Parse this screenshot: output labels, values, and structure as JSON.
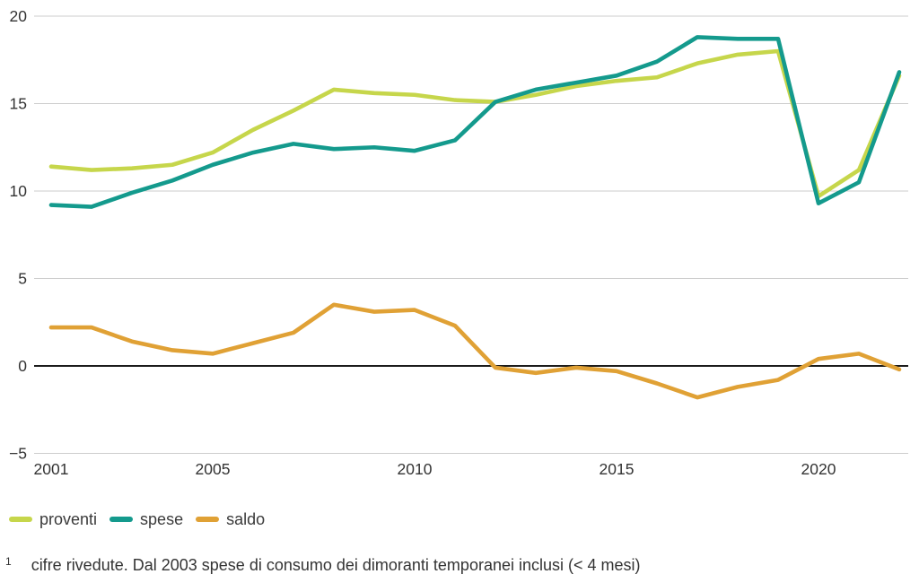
{
  "chart_data": {
    "type": "line",
    "x": [
      2001,
      2002,
      2003,
      2004,
      2005,
      2006,
      2007,
      2008,
      2009,
      2010,
      2011,
      2012,
      2013,
      2014,
      2015,
      2016,
      2017,
      2018,
      2019,
      2020,
      2021,
      2022
    ],
    "series": [
      {
        "name": "proventi",
        "color": "#c6d64b",
        "values": [
          11.4,
          11.2,
          11.3,
          11.5,
          12.2,
          13.5,
          14.6,
          15.8,
          15.6,
          15.5,
          15.2,
          15.1,
          15.5,
          16.0,
          16.3,
          16.5,
          17.3,
          17.8,
          18.0,
          9.7,
          11.2,
          16.6
        ]
      },
      {
        "name": "spese",
        "color": "#149a8d",
        "values": [
          9.2,
          9.1,
          9.9,
          10.6,
          11.5,
          12.2,
          12.7,
          12.4,
          12.5,
          12.3,
          12.9,
          15.1,
          15.8,
          16.2,
          16.6,
          17.4,
          18.8,
          18.7,
          18.7,
          9.3,
          10.5,
          16.8
        ]
      },
      {
        "name": "saldo",
        "color": "#e0a135",
        "values": [
          2.2,
          2.2,
          1.4,
          0.9,
          0.7,
          1.3,
          1.9,
          3.5,
          3.1,
          3.2,
          2.3,
          -0.1,
          -0.4,
          -0.1,
          -0.3,
          -1.0,
          -1.8,
          -1.2,
          -0.8,
          0.4,
          0.7,
          -0.2
        ]
      }
    ],
    "xticks": [
      {
        "value": 2001,
        "label": "2001"
      },
      {
        "value": 2005,
        "label": "2005"
      },
      {
        "value": 2010,
        "label": "2010"
      },
      {
        "value": 2015,
        "label": "2015"
      },
      {
        "value": 2020,
        "label": "2020"
      }
    ],
    "yticks": [
      {
        "value": 20,
        "label": "20"
      },
      {
        "value": 15,
        "label": "15"
      },
      {
        "value": 10,
        "label": "10"
      },
      {
        "value": 5,
        "label": "5"
      },
      {
        "value": 0,
        "label": "0"
      },
      {
        "value": -5,
        "label": "−5"
      }
    ],
    "ylim": [
      -5,
      20
    ],
    "xlim": [
      2001,
      2022
    ],
    "title": "",
    "xlabel": "",
    "ylabel": "",
    "grid": true,
    "zero_line": true,
    "legend_position": "bottom-left",
    "colors": {
      "grid": "#cdcdcd",
      "zero_line": "#1b1b1b",
      "tick_text": "#333333"
    }
  },
  "legend": {
    "items": [
      "proventi",
      "spese",
      "saldo"
    ]
  },
  "footnote": {
    "marker": "1",
    "text": "cifre rivedute. Dal 2003 spese di consumo dei dimoranti temporanei inclusi (< 4 mesi)"
  }
}
